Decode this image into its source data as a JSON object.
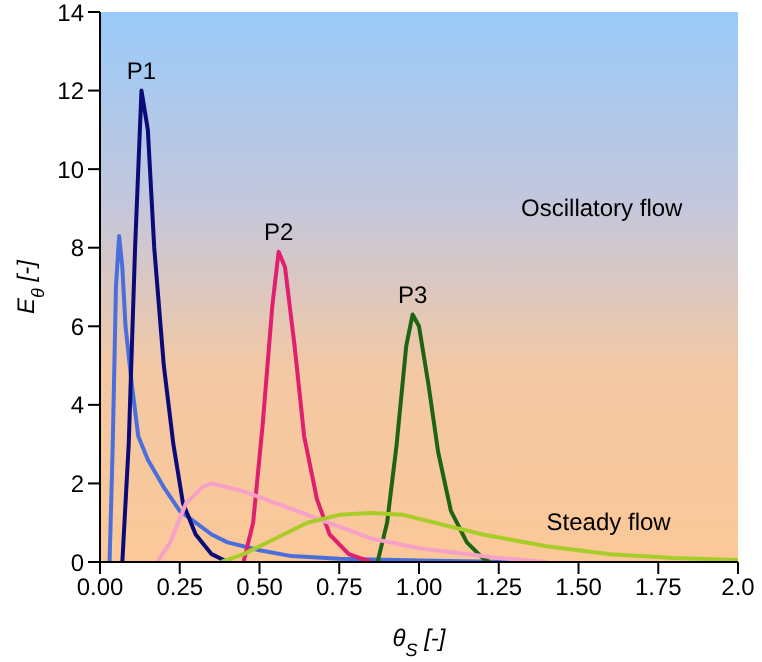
{
  "chart_data": {
    "type": "line",
    "xlabel": "θ$_{S}$ [-]",
    "ylabel": "E$_{θ}$ [-]",
    "xlim": [
      0,
      2
    ],
    "xticks": [
      {
        "value": 0,
        "label": "0.00"
      },
      {
        "value": 0.25,
        "label": "0.25"
      },
      {
        "value": 0.5,
        "label": "0.50"
      },
      {
        "value": 0.75,
        "label": "0.75"
      },
      {
        "value": 1,
        "label": "1.00"
      },
      {
        "value": 1.25,
        "label": "1.25"
      },
      {
        "value": 1.5,
        "label": "1.50"
      },
      {
        "value": 1.75,
        "label": "1.75"
      },
      {
        "value": 2,
        "label": "2.0"
      }
    ],
    "ylim": [
      0,
      14
    ],
    "yticks": [
      0,
      2,
      4,
      6,
      8,
      10,
      12,
      14
    ],
    "grid": false,
    "marker": "none",
    "line_style": "solid",
    "series": [
      {
        "color": "#4a6fdc",
        "x": [
          0.03,
          0.04,
          0.05,
          0.06,
          0.07,
          0.08,
          0.1,
          0.12,
          0.15,
          0.2,
          0.25,
          0.3,
          0.35,
          0.4,
          0.5,
          0.6,
          0.75,
          1.0,
          1.3
        ],
        "values": [
          0,
          3,
          7,
          8.3,
          7.5,
          6,
          4.5,
          3.2,
          2.6,
          1.9,
          1.3,
          1.0,
          0.7,
          0.5,
          0.3,
          0.15,
          0.08,
          0.04,
          0
        ]
      },
      {
        "color": "#0a0a78",
        "x": [
          0.07,
          0.09,
          0.11,
          0.13,
          0.15,
          0.17,
          0.2,
          0.23,
          0.26,
          0.3,
          0.35,
          0.4
        ],
        "values": [
          0,
          3,
          8,
          12,
          11,
          8,
          5,
          3,
          1.5,
          0.7,
          0.2,
          0
        ]
      },
      {
        "color": "#e0206e",
        "x": [
          0.45,
          0.48,
          0.51,
          0.54,
          0.56,
          0.58,
          0.61,
          0.64,
          0.68,
          0.72,
          0.78,
          0.85
        ],
        "values": [
          0,
          1,
          3.5,
          6.5,
          7.9,
          7.5,
          5.5,
          3.2,
          1.6,
          0.7,
          0.2,
          0
        ]
      },
      {
        "color": "#1e6414",
        "x": [
          0.87,
          0.9,
          0.93,
          0.96,
          0.98,
          1.0,
          1.03,
          1.06,
          1.1,
          1.15,
          1.2,
          1.22
        ],
        "values": [
          0,
          1,
          3,
          5.5,
          6.3,
          6,
          4.5,
          2.8,
          1.3,
          0.5,
          0.1,
          0
        ]
      },
      {
        "color": "#f7a0c8",
        "x": [
          0.18,
          0.22,
          0.27,
          0.32,
          0.35,
          0.45,
          0.55,
          0.65,
          0.75,
          0.85,
          1.0,
          1.25,
          1.4
        ],
        "values": [
          0,
          0.5,
          1.5,
          1.9,
          2.0,
          1.8,
          1.5,
          1.2,
          0.9,
          0.6,
          0.35,
          0.1,
          0
        ]
      },
      {
        "color": "#a8cc28",
        "x": [
          0.38,
          0.45,
          0.55,
          0.65,
          0.75,
          0.85,
          0.95,
          1.05,
          1.2,
          1.4,
          1.6,
          1.8,
          2.0
        ],
        "values": [
          0,
          0.2,
          0.6,
          1.0,
          1.2,
          1.25,
          1.2,
          1.0,
          0.7,
          0.4,
          0.2,
          0.1,
          0.05
        ]
      }
    ],
    "annotations": [
      {
        "text": "P1",
        "x": 0.13,
        "y": 12
      },
      {
        "text": "P2",
        "x": 0.56,
        "y": 7.9
      },
      {
        "text": "P3",
        "x": 0.98,
        "y": 6.3
      },
      "Oscillatory flow",
      "Steady flow"
    ]
  }
}
